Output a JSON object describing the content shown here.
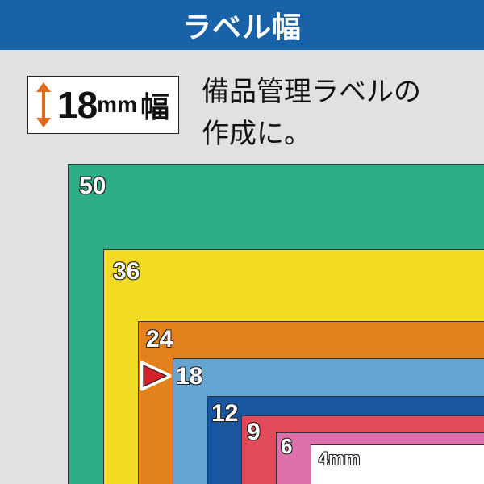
{
  "header": {
    "title": "ラベル幅"
  },
  "badge": {
    "number": "18",
    "unit": "mm",
    "kanji": "幅",
    "icon": "double-arrow-icon"
  },
  "description": {
    "line1": "備品管理ラベルの",
    "line2": "作成に。"
  },
  "tapes": [
    {
      "width": "50",
      "color": "#2fad86"
    },
    {
      "width": "36",
      "color": "#f1db23"
    },
    {
      "width": "24",
      "color": "#e3821c"
    },
    {
      "width": "18",
      "color": "#66a5d1"
    },
    {
      "width": "12",
      "color": "#1a56a0"
    },
    {
      "width": "9",
      "color": "#e2495a"
    },
    {
      "width": "6",
      "color": "#de70ac"
    },
    {
      "width": "4mm",
      "color": "#ffffff"
    }
  ],
  "highlight": {
    "icon": "red-triangle-pointer-icon",
    "target": "18"
  }
}
